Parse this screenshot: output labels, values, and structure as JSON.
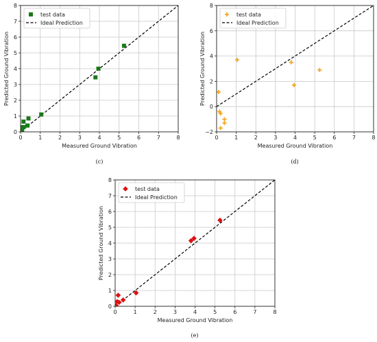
{
  "chart_data": [
    {
      "type": "scatter",
      "panel": "c",
      "caption": "(c)",
      "xlabel": "Measured Ground Vibration",
      "ylabel": "Predicted Ground Vibration",
      "xlim": [
        0,
        8
      ],
      "ylim": [
        0,
        8
      ],
      "xticks": [
        0,
        1,
        2,
        3,
        4,
        5,
        6,
        7,
        8
      ],
      "yticks": [
        0,
        1,
        2,
        3,
        4,
        5,
        6,
        7,
        8
      ],
      "grid": true,
      "legend_position": "top-left",
      "marker": "square",
      "color": "#1a7a1a",
      "series": [
        {
          "name": "test data",
          "x": [
            0.05,
            0.08,
            0.1,
            0.12,
            0.15,
            0.15,
            0.35,
            0.4,
            1.05,
            3.8,
            3.95,
            5.25
          ],
          "y": [
            0.05,
            0.15,
            0.3,
            0.3,
            0.65,
            0.3,
            0.4,
            0.85,
            1.1,
            3.45,
            4.0,
            5.45
          ]
        }
      ],
      "reference_line": {
        "name": "Ideal Prediction",
        "x": [
          0,
          8
        ],
        "y": [
          0,
          8
        ]
      }
    },
    {
      "type": "scatter",
      "panel": "d",
      "caption": "(d)",
      "xlabel": "Measured Ground Vibration",
      "ylabel": "Predicted Ground Vibration",
      "xlim": [
        0,
        8
      ],
      "ylim": [
        -2,
        8
      ],
      "xticks": [
        0,
        1,
        2,
        3,
        4,
        5,
        6,
        7,
        8
      ],
      "yticks": [
        -2,
        0,
        2,
        4,
        6,
        8
      ],
      "grid": true,
      "legend_position": "top-left",
      "marker": "plus",
      "color": "#f5a623",
      "series": [
        {
          "name": "test data",
          "x": [
            0.1,
            0.15,
            0.2,
            0.2,
            0.4,
            0.4,
            1.05,
            3.8,
            3.95,
            5.25
          ],
          "y": [
            1.15,
            -0.4,
            -0.55,
            -1.7,
            -1.0,
            -1.3,
            3.7,
            3.5,
            1.7,
            2.9
          ]
        }
      ],
      "reference_line": {
        "name": "Ideal Prediction",
        "x": [
          0,
          8
        ],
        "y": [
          0,
          8
        ]
      }
    },
    {
      "type": "scatter",
      "panel": "e",
      "caption": "(e)",
      "xlabel": "Measured Ground Vibration",
      "ylabel": "Predicted Ground Vibration",
      "xlim": [
        0,
        8
      ],
      "ylim": [
        0,
        8
      ],
      "xticks": [
        0,
        1,
        2,
        3,
        4,
        5,
        6,
        7,
        8
      ],
      "yticks": [
        0,
        1,
        2,
        3,
        4,
        5,
        6,
        7,
        8
      ],
      "grid": true,
      "legend_position": "top-left",
      "marker": "diamond",
      "color": "#dd1111",
      "series": [
        {
          "name": "test data",
          "x": [
            0.05,
            0.1,
            0.15,
            0.2,
            0.4,
            1.05,
            3.8,
            3.95,
            5.25
          ],
          "y": [
            0.05,
            0.3,
            0.7,
            0.25,
            0.4,
            0.85,
            4.15,
            4.3,
            5.45
          ]
        }
      ],
      "reference_line": {
        "name": "Ideal Prediction",
        "x": [
          0,
          8
        ],
        "y": [
          0,
          8
        ]
      }
    }
  ]
}
